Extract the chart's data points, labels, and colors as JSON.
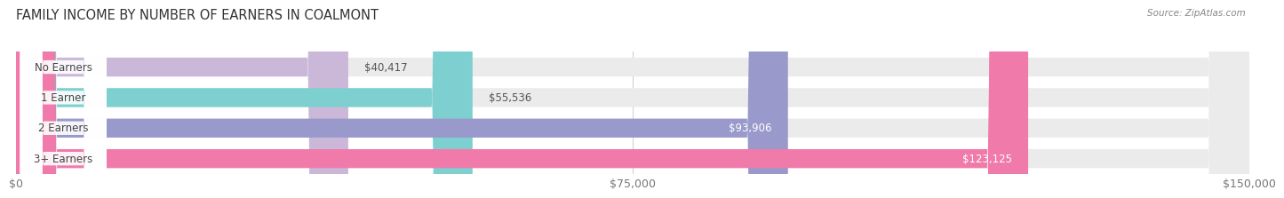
{
  "title": "FAMILY INCOME BY NUMBER OF EARNERS IN COALMONT",
  "source": "Source: ZipAtlas.com",
  "categories": [
    "No Earners",
    "1 Earner",
    "2 Earners",
    "3+ Earners"
  ],
  "values": [
    40417,
    55536,
    93906,
    123125
  ],
  "labels": [
    "$40,417",
    "$55,536",
    "$93,906",
    "$123,125"
  ],
  "bar_colors": [
    "#cbb8d9",
    "#7ecfcf",
    "#9999cc",
    "#f07aaa"
  ],
  "value_label_colors": [
    "#555555",
    "#555555",
    "#ffffff",
    "#ffffff"
  ],
  "background_color": "#ffffff",
  "bar_bg_color": "#ebebeb",
  "xlim": [
    0,
    150000
  ],
  "xticks": [
    0,
    75000,
    150000
  ],
  "xticklabels": [
    "$0",
    "$75,000",
    "$150,000"
  ],
  "title_fontsize": 10.5,
  "label_fontsize": 8.5,
  "tick_fontsize": 9,
  "bar_height": 0.62,
  "fig_width": 14.06,
  "fig_height": 2.33
}
